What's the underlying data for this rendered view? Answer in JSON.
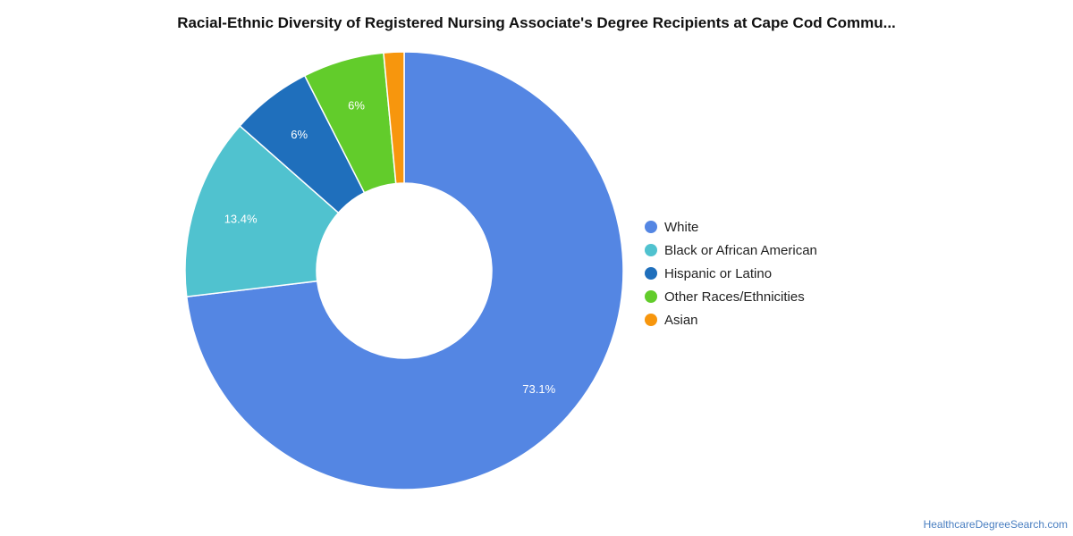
{
  "chart_data": {
    "type": "pie",
    "donut": true,
    "title": "Racial-Ethnic Diversity of Registered Nursing Associate's Degree Recipients at Cape Cod Commu...",
    "series": [
      {
        "name": "White",
        "value": 73.1,
        "label": "73.1%",
        "color": "#5486e3"
      },
      {
        "name": "Black or African American",
        "value": 13.4,
        "label": "13.4%",
        "color": "#50c2cf"
      },
      {
        "name": "Hispanic or Latino",
        "value": 6,
        "label": "6%",
        "color": "#1f6fbc"
      },
      {
        "name": "Other Races/Ethnicities",
        "value": 6,
        "label": "6%",
        "color": "#62cc2b"
      },
      {
        "name": "Asian",
        "value": 1.5,
        "label": "",
        "color": "#f7960d"
      }
    ],
    "legend_position": "right"
  },
  "footer": {
    "credit": "HealthcareDegreeSearch.com"
  }
}
